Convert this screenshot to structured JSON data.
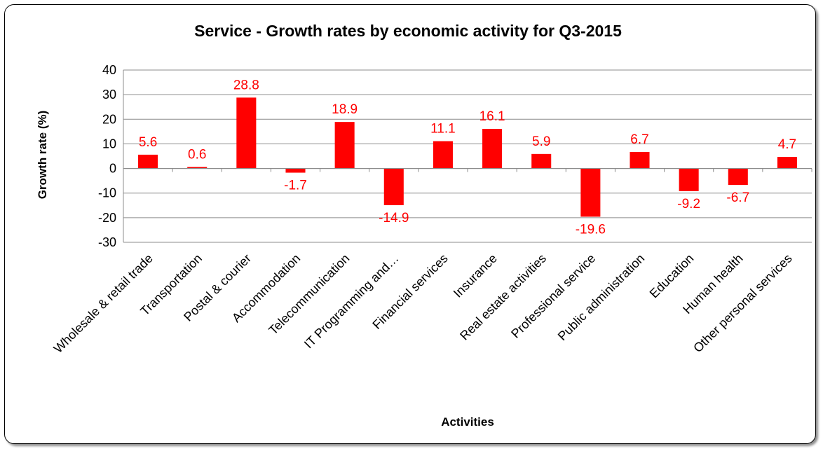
{
  "chart_data": {
    "type": "bar",
    "title": "Service - Growth rates by economic activity for Q3-2015",
    "xlabel": "Activities",
    "ylabel": "Growth rate (%)",
    "ylim": [
      -30,
      40
    ],
    "yticks": [
      40,
      30,
      20,
      10,
      0,
      -10,
      -20,
      -30
    ],
    "grid": true,
    "legend": "none",
    "bar_color": "#ff0000",
    "label_color": "#ff0000",
    "categories": [
      "Wholesale & retail trade",
      "Transportation",
      "Postal & courier",
      "Accommodation",
      "Telecommunication",
      "IT Programming and…",
      "Financial services",
      "Insurance",
      "Real estate activities",
      "Professional service",
      "Public administration",
      "Education",
      "Human health",
      "Other personal services"
    ],
    "values": [
      5.6,
      0.6,
      28.8,
      -1.7,
      18.9,
      -14.9,
      11.1,
      16.1,
      5.9,
      -19.6,
      6.7,
      -9.2,
      -6.7,
      4.7
    ],
    "data_labels": [
      "5.6",
      "0.6",
      "28.8",
      "-1.7",
      "18.9",
      "-14.9",
      "11.1",
      "16.1",
      "5.9",
      "-19.6",
      "6.7",
      "-9.2",
      "-6.7",
      "4.7"
    ]
  }
}
